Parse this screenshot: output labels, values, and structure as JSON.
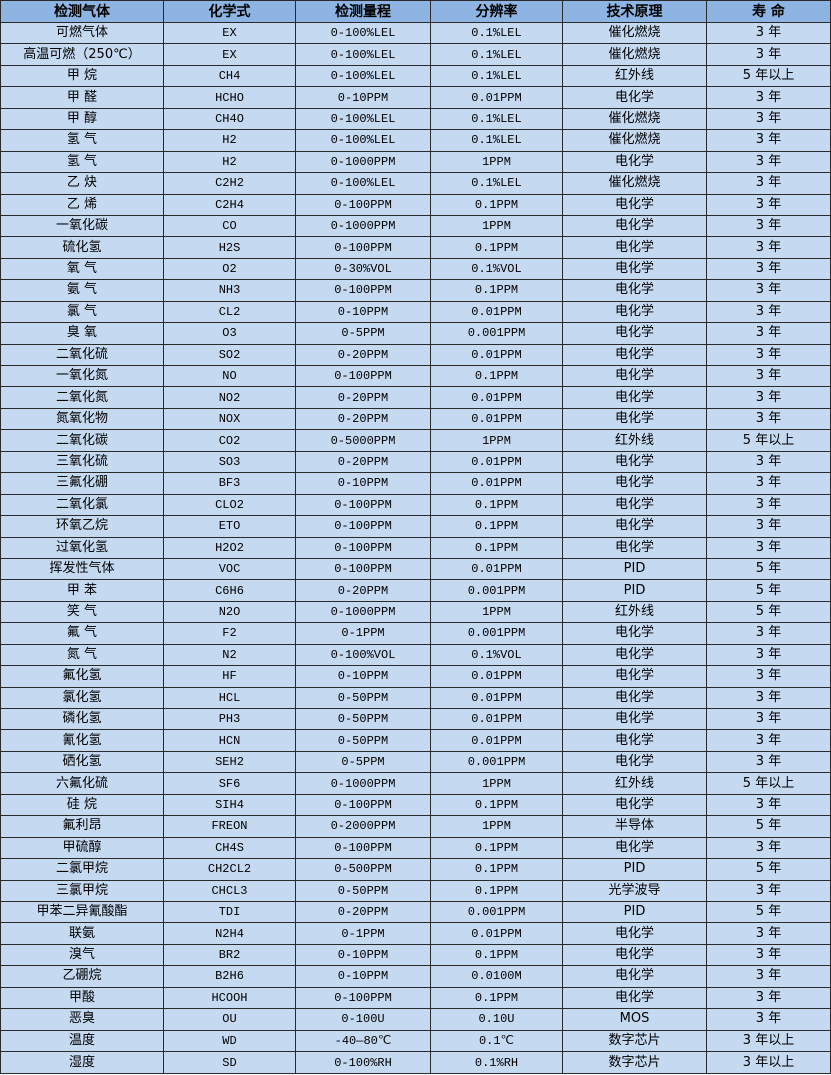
{
  "colors": {
    "header_bg": "#8db4e2",
    "row_bg": "#c5d9f1",
    "border": "#2a2a2a"
  },
  "headers": [
    "检测气体",
    "化学式",
    "检测量程",
    "分辨率",
    "技术原理",
    "寿 命"
  ],
  "rows": [
    [
      "可燃气体",
      "EX",
      "0-100%LEL",
      "0.1%LEL",
      "催化燃烧",
      "3 年"
    ],
    [
      "高温可燃（250℃）",
      "EX",
      "0-100%LEL",
      "0.1%LEL",
      "催化燃烧",
      "3 年"
    ],
    [
      "甲 烷",
      "CH4",
      "0-100%LEL",
      "0.1%LEL",
      "红外线",
      "5 年以上"
    ],
    [
      "甲 醛",
      "HCHO",
      "0-10PPM",
      "0.01PPM",
      "电化学",
      "3 年"
    ],
    [
      "甲 醇",
      "CH4O",
      "0-100%LEL",
      "0.1%LEL",
      "催化燃烧",
      "3 年"
    ],
    [
      "氢 气",
      "H2",
      "0-100%LEL",
      "0.1%LEL",
      "催化燃烧",
      "3 年"
    ],
    [
      "氢 气",
      "H2",
      "0-1000PPM",
      "1PPM",
      "电化学",
      "3 年"
    ],
    [
      "乙 炔",
      "C2H2",
      "0-100%LEL",
      "0.1%LEL",
      "催化燃烧",
      "3 年"
    ],
    [
      "乙 烯",
      "C2H4",
      "0-100PPM",
      "0.1PPM",
      "电化学",
      "3 年"
    ],
    [
      "一氧化碳",
      "CO",
      "0-1000PPM",
      "1PPM",
      "电化学",
      "3 年"
    ],
    [
      "硫化氢",
      "H2S",
      "0-100PPM",
      "0.1PPM",
      "电化学",
      "3 年"
    ],
    [
      "氧 气",
      "O2",
      "0-30%VOL",
      "0.1%VOL",
      "电化学",
      "3 年"
    ],
    [
      "氨 气",
      "NH3",
      "0-100PPM",
      "0.1PPM",
      "电化学",
      "3 年"
    ],
    [
      "氯 气",
      "CL2",
      "0-10PPM",
      "0.01PPM",
      "电化学",
      "3 年"
    ],
    [
      "臭 氧",
      "O3",
      "0-5PPM",
      "0.001PPM",
      "电化学",
      "3 年"
    ],
    [
      "二氧化硫",
      "SO2",
      "0-20PPM",
      "0.01PPM",
      "电化学",
      "3 年"
    ],
    [
      "一氧化氮",
      "NO",
      "0-100PPM",
      "0.1PPM",
      "电化学",
      "3 年"
    ],
    [
      "二氧化氮",
      "NO2",
      "0-20PPM",
      "0.01PPM",
      "电化学",
      "3 年"
    ],
    [
      "氮氧化物",
      "NOX",
      "0-20PPM",
      "0.01PPM",
      "电化学",
      "3 年"
    ],
    [
      "二氧化碳",
      "CO2",
      "0-5000PPM",
      "1PPM",
      "红外线",
      "5 年以上"
    ],
    [
      "三氧化硫",
      "SO3",
      "0-20PPM",
      "0.01PPM",
      "电化学",
      "3 年"
    ],
    [
      "三氟化硼",
      "BF3",
      "0-10PPM",
      "0.01PPM",
      "电化学",
      "3 年"
    ],
    [
      "二氧化氯",
      "CLO2",
      "0-100PPM",
      "0.1PPM",
      "电化学",
      "3 年"
    ],
    [
      "环氧乙烷",
      "ETO",
      "0-100PPM",
      "0.1PPM",
      "电化学",
      "3 年"
    ],
    [
      "过氧化氢",
      "H2O2",
      "0-100PPM",
      "0.1PPM",
      "电化学",
      "3 年"
    ],
    [
      "挥发性气体",
      "VOC",
      "0-100PPM",
      "0.01PPM",
      "PID",
      "5 年"
    ],
    [
      "甲 苯",
      "C6H6",
      "0-20PPM",
      "0.001PPM",
      "PID",
      "5 年"
    ],
    [
      "笑 气",
      "N2O",
      "0-1000PPM",
      "1PPM",
      "红外线",
      "5 年"
    ],
    [
      "氟 气",
      "F2",
      "0-1PPM",
      "0.001PPM",
      "电化学",
      "3 年"
    ],
    [
      "氮 气",
      "N2",
      "0-100%VOL",
      "0.1%VOL",
      "电化学",
      "3 年"
    ],
    [
      "氟化氢",
      "HF",
      "0-10PPM",
      "0.01PPM",
      "电化学",
      "3 年"
    ],
    [
      "氯化氢",
      "HCL",
      "0-50PPM",
      "0.01PPM",
      "电化学",
      "3 年"
    ],
    [
      "磷化氢",
      "PH3",
      "0-50PPM",
      "0.01PPM",
      "电化学",
      "3 年"
    ],
    [
      "氰化氢",
      "HCN",
      "0-50PPM",
      "0.01PPM",
      "电化学",
      "3 年"
    ],
    [
      "硒化氢",
      "SEH2",
      "0-5PPM",
      "0.001PPM",
      "电化学",
      "3 年"
    ],
    [
      "六氟化硫",
      "SF6",
      "0-1000PPM",
      "1PPM",
      "红外线",
      "5 年以上"
    ],
    [
      "硅 烷",
      "SIH4",
      "0-100PPM",
      "0.1PPM",
      "电化学",
      "3 年"
    ],
    [
      "氟利昂",
      "FREON",
      "0-2000PPM",
      "1PPM",
      "半导体",
      "5 年"
    ],
    [
      "甲硫醇",
      "CH4S",
      "0-100PPM",
      "0.1PPM",
      "电化学",
      "3 年"
    ],
    [
      "二氯甲烷",
      "CH2CL2",
      "0-500PPM",
      "0.1PPM",
      "PID",
      "5 年"
    ],
    [
      "三氯甲烷",
      "CHCL3",
      "0-50PPM",
      "0.1PPM",
      "光学波导",
      "3 年"
    ],
    [
      "甲苯二异氰酸酯",
      "TDI",
      "0-20PPM",
      "0.001PPM",
      "PID",
      "5 年"
    ],
    [
      "联氨",
      "N2H4",
      "0-1PPM",
      "0.01PPM",
      "电化学",
      "3 年"
    ],
    [
      "溴气",
      "BR2",
      "0-10PPM",
      "0.1PPM",
      "电化学",
      "3 年"
    ],
    [
      "乙硼烷",
      "B2H6",
      "0-10PPM",
      "0.0100M",
      "电化学",
      "3 年"
    ],
    [
      "甲酸",
      "HCOOH",
      "0-100PPM",
      "0.1PPM",
      "电化学",
      "3 年"
    ],
    [
      "恶臭",
      "OU",
      "0-100U",
      "0.10U",
      "MOS",
      "3 年"
    ],
    [
      "温度",
      "WD",
      "-40—80℃",
      "0.1℃",
      "数字芯片",
      "3 年以上"
    ],
    [
      "湿度",
      "SD",
      "0-100%RH",
      "0.1%RH",
      "数字芯片",
      "3 年以上"
    ]
  ]
}
